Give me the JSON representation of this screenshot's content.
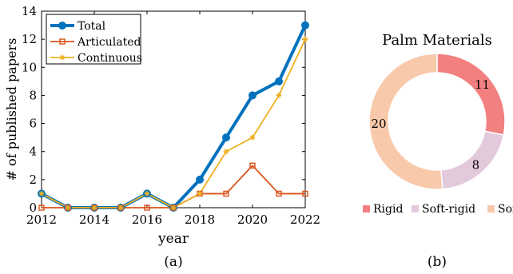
{
  "chart_data": [
    {
      "type": "line",
      "x": [
        2012,
        2013,
        2014,
        2015,
        2016,
        2017,
        2018,
        2019,
        2020,
        2021,
        2022
      ],
      "series": [
        {
          "name": "Total",
          "values": [
            1,
            0,
            0,
            0,
            1,
            0,
            2,
            5,
            8,
            9,
            13
          ],
          "color": "#0072BD",
          "marker": "circle"
        },
        {
          "name": "Articulated",
          "values": [
            0,
            0,
            0,
            0,
            0,
            0,
            1,
            1,
            3,
            1,
            1
          ],
          "color": "#D95319",
          "marker": "square"
        },
        {
          "name": "Continuous",
          "values": [
            1,
            0,
            0,
            0,
            1,
            0,
            1,
            4,
            5,
            8,
            12
          ],
          "color": "#EDB120",
          "marker": "star"
        }
      ],
      "xlabel": "year",
      "ylabel": "# of published papers",
      "xlim": [
        2012,
        2022
      ],
      "ylim": [
        0,
        14
      ],
      "xticks": [
        "2012",
        "2014",
        "2016",
        "2018",
        "2020",
        "2022"
      ],
      "yticks": [
        "0",
        "2",
        "4",
        "6",
        "8",
        "10",
        "12",
        "14"
      ],
      "grid": false,
      "legend_position": "top-left",
      "caption": "(a)"
    },
    {
      "type": "pie",
      "title": "Palm Materials",
      "donut": true,
      "categories": [
        "Rigid",
        "Soft-rigid",
        "Soft"
      ],
      "values": [
        11,
        8,
        20
      ],
      "value_labels": [
        "11",
        "8",
        "20"
      ],
      "colors": [
        "#F28080",
        "#E2C9DC",
        "#F8C9AA"
      ],
      "legend_position": "bottom",
      "caption": "(b)"
    }
  ]
}
